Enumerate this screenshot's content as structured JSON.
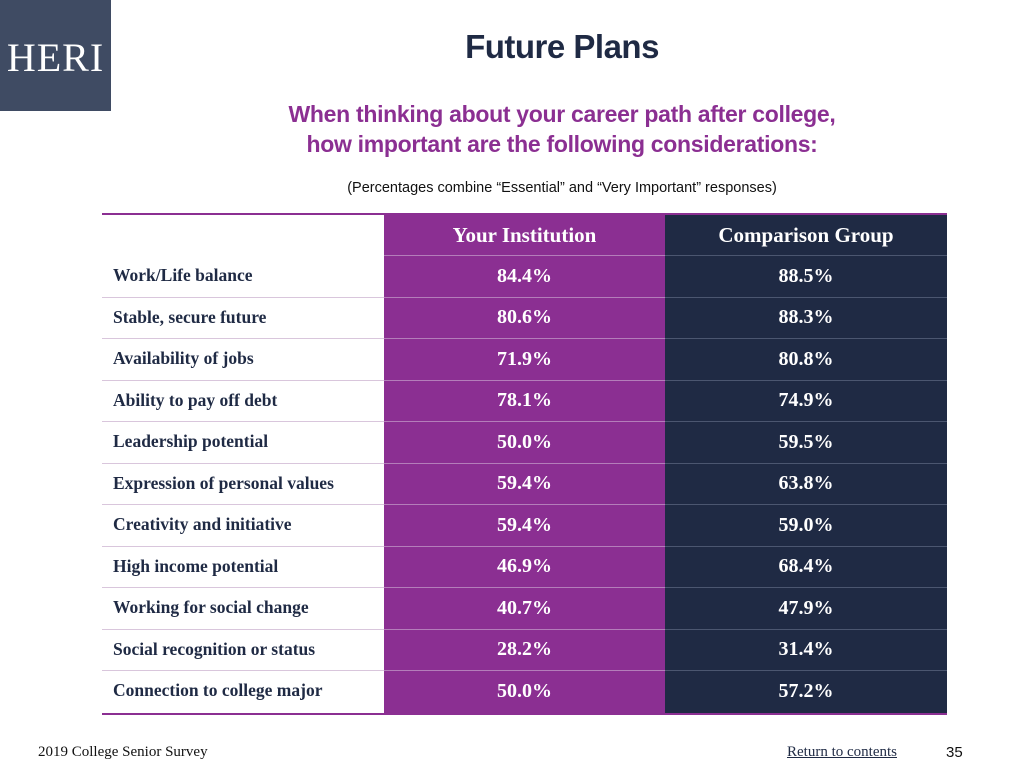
{
  "logo": {
    "text": "HERI",
    "bg_color": "#3f4b63"
  },
  "title": "Future Plans",
  "subtitle": {
    "line1": "When thinking about your career path after college,",
    "line2": "how important are the following considerations:"
  },
  "note": "(Percentages combine “Essential” and “Very Important” responses)",
  "table": {
    "headers": {
      "label": "",
      "institution": "Your Institution",
      "comparison": "Comparison Group"
    },
    "rows": [
      {
        "label": "Work/Life balance",
        "institution": "84.4%",
        "comparison": "88.5%"
      },
      {
        "label": "Stable, secure future",
        "institution": "80.6%",
        "comparison": "88.3%"
      },
      {
        "label": "Availability of jobs",
        "institution": "71.9%",
        "comparison": "80.8%"
      },
      {
        "label": "Ability to pay off debt",
        "institution": "78.1%",
        "comparison": "74.9%"
      },
      {
        "label": "Leadership potential",
        "institution": "50.0%",
        "comparison": "59.5%"
      },
      {
        "label": "Expression of personal values",
        "institution": "59.4%",
        "comparison": "63.8%"
      },
      {
        "label": "Creativity and initiative",
        "institution": "59.4%",
        "comparison": "59.0%"
      },
      {
        "label": "High income potential",
        "institution": "46.9%",
        "comparison": "68.4%"
      },
      {
        "label": "Working for social change",
        "institution": "40.7%",
        "comparison": "47.9%"
      },
      {
        "label": "Social recognition or status",
        "institution": "28.2%",
        "comparison": "31.4%"
      },
      {
        "label": "Connection to college major",
        "institution": "50.0%",
        "comparison": "57.2%"
      }
    ]
  },
  "colors": {
    "purple": "#8b2f92",
    "navy": "#1f2a44"
  },
  "footer": {
    "survey": "2019 College Senior Survey",
    "link": "Return to contents",
    "page": "35"
  }
}
